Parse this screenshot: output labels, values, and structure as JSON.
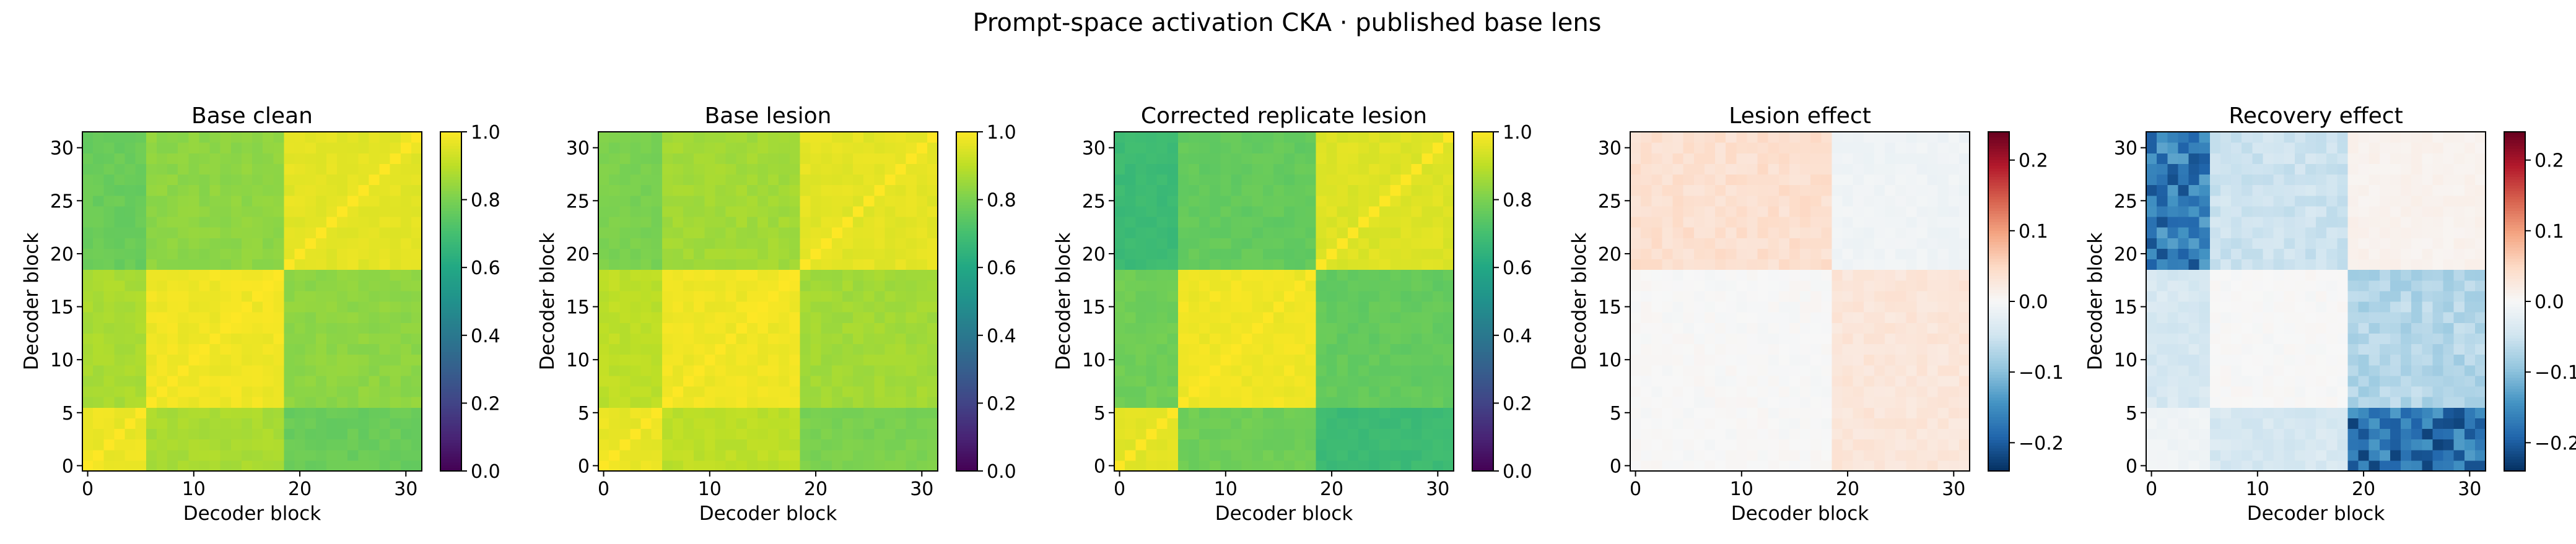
{
  "figure": {
    "title": "Prompt-space activation CKA · published base lens"
  },
  "chart_data": [
    {
      "type": "heatmap",
      "title": "Base clean",
      "xlabel": "Decoder block",
      "ylabel": "Decoder block",
      "xticks": [
        "0",
        "10",
        "20",
        "30"
      ],
      "yticks": [
        "0",
        "5",
        "10",
        "15",
        "20",
        "25",
        "30"
      ],
      "colormap": "viridis",
      "clim": [
        0.0,
        1.0
      ],
      "colorbar_ticks": [
        "0.0",
        "0.2",
        "0.4",
        "0.6",
        "0.8",
        "1.0"
      ],
      "n": 32,
      "matrix_blocks": {
        "boundaries": [
          0,
          6,
          19,
          32
        ],
        "values": [
          [
            0.97,
            0.87,
            0.77
          ],
          [
            0.87,
            0.98,
            0.83
          ],
          [
            0.77,
            0.83,
            0.96
          ]
        ]
      }
    },
    {
      "type": "heatmap",
      "title": "Base lesion",
      "xlabel": "Decoder block",
      "ylabel": "Decoder block",
      "xticks": [
        "0",
        "10",
        "20",
        "30"
      ],
      "yticks": [
        "0",
        "5",
        "10",
        "15",
        "20",
        "25",
        "30"
      ],
      "colormap": "viridis",
      "clim": [
        0.0,
        1.0
      ],
      "colorbar_ticks": [
        "0.0",
        "0.2",
        "0.4",
        "0.6",
        "0.8",
        "1.0"
      ],
      "n": 32,
      "matrix_blocks": {
        "boundaries": [
          0,
          6,
          19,
          32
        ],
        "values": [
          [
            0.97,
            0.9,
            0.8
          ],
          [
            0.9,
            0.98,
            0.86
          ],
          [
            0.8,
            0.86,
            0.96
          ]
        ]
      }
    },
    {
      "type": "heatmap",
      "title": "Corrected replicate lesion",
      "xlabel": "Decoder block",
      "ylabel": "Decoder block",
      "xticks": [
        "0",
        "10",
        "20",
        "30"
      ],
      "yticks": [
        "0",
        "5",
        "10",
        "15",
        "20",
        "25",
        "30"
      ],
      "colormap": "viridis",
      "clim": [
        0.0,
        1.0
      ],
      "colorbar_ticks": [
        "0.0",
        "0.2",
        "0.4",
        "0.6",
        "0.8",
        "1.0"
      ],
      "n": 32,
      "matrix_blocks": {
        "boundaries": [
          0,
          6,
          19,
          32
        ],
        "values": [
          [
            0.96,
            0.78,
            0.68
          ],
          [
            0.78,
            0.98,
            0.76
          ],
          [
            0.68,
            0.76,
            0.95
          ]
        ]
      }
    },
    {
      "type": "heatmap",
      "title": "Lesion effect",
      "xlabel": "Decoder block",
      "ylabel": "Decoder block",
      "xticks": [
        "0",
        "10",
        "20",
        "30"
      ],
      "yticks": [
        "0",
        "5",
        "10",
        "15",
        "20",
        "25",
        "30"
      ],
      "colormap": "RdBu_r",
      "clim": [
        -0.24,
        0.24
      ],
      "colorbar_ticks": [
        "0.2",
        "0.1",
        "0.0",
        "−0.1",
        "−0.2"
      ],
      "colorbar_tick_values": [
        0.2,
        0.1,
        0.0,
        -0.1,
        -0.2
      ],
      "n": 32,
      "matrix_blocks": {
        "boundaries": [
          0,
          6,
          19,
          32
        ],
        "values": [
          [
            0.0,
            0.0,
            0.03
          ],
          [
            0.0,
            0.0,
            0.03
          ],
          [
            0.04,
            0.04,
            -0.01
          ]
        ]
      }
    },
    {
      "type": "heatmap",
      "title": "Recovery effect",
      "xlabel": "Decoder block",
      "ylabel": "Decoder block",
      "xticks": [
        "0",
        "10",
        "20",
        "30"
      ],
      "yticks": [
        "0",
        "5",
        "10",
        "15",
        "20",
        "25",
        "30"
      ],
      "colormap": "RdBu_r",
      "clim": [
        -0.24,
        0.24
      ],
      "colorbar_ticks": [
        "0.2",
        "0.1",
        "0.0",
        "−0.1",
        "−0.2"
      ],
      "colorbar_tick_values": [
        0.2,
        0.1,
        0.0,
        -0.1,
        -0.2
      ],
      "n": 32,
      "matrix_blocks": {
        "boundaries": [
          0,
          6,
          19,
          32
        ],
        "values": [
          [
            -0.01,
            -0.04,
            -0.18
          ],
          [
            -0.04,
            0.0,
            -0.07
          ],
          [
            -0.17,
            -0.05,
            0.01
          ]
        ]
      }
    }
  ]
}
